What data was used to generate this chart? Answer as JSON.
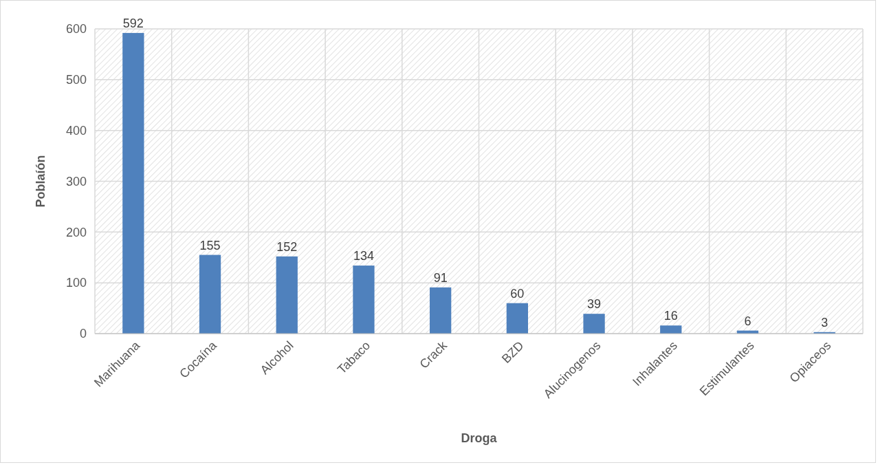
{
  "chart_data": {
    "type": "bar",
    "xlabel": "Droga",
    "ylabel": "Poblaíón",
    "categories": [
      "Marihuana",
      "Cocaína",
      "Alcohol",
      "Tabaco",
      "Crack",
      "BZD",
      "Alucinogenos",
      "Inhalantes",
      "Estimulantes",
      "Opiaceos"
    ],
    "values": [
      592,
      155,
      152,
      134,
      91,
      60,
      39,
      16,
      6,
      3
    ],
    "color": "#4f81bd",
    "ylim": [
      0,
      600
    ],
    "yticks": [
      0,
      100,
      200,
      300,
      400,
      500,
      600
    ],
    "grid": true,
    "data_labels": true
  }
}
